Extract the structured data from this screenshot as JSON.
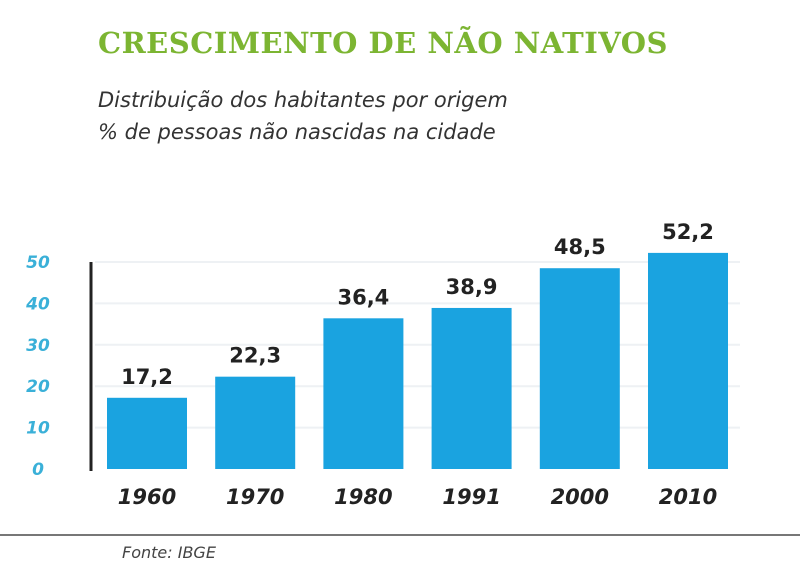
{
  "chart_data": {
    "type": "bar",
    "title": "CRESCIMENTO DE NÃO NATIVOS",
    "subtitle": [
      "Distribuição dos habitantes por origem",
      "% de pessoas não nascidas na cidade"
    ],
    "categories": [
      "1960",
      "1970",
      "1980",
      "1991",
      "2000",
      "2010"
    ],
    "values": [
      17.2,
      22.3,
      36.4,
      38.9,
      48.5,
      52.2
    ],
    "value_labels": [
      "17,2",
      "22,3",
      "36,4",
      "38,9",
      "48,5",
      "52,2"
    ],
    "yticks": [
      "0",
      "10",
      "20",
      "30",
      "40",
      "50"
    ],
    "ylim": [
      0,
      50
    ],
    "grid": true,
    "source": "Fonte: IBGE",
    "colors": {
      "bar": "#1aa3e0",
      "title": "#7cb532",
      "ytick": "#3ab0d8"
    }
  }
}
